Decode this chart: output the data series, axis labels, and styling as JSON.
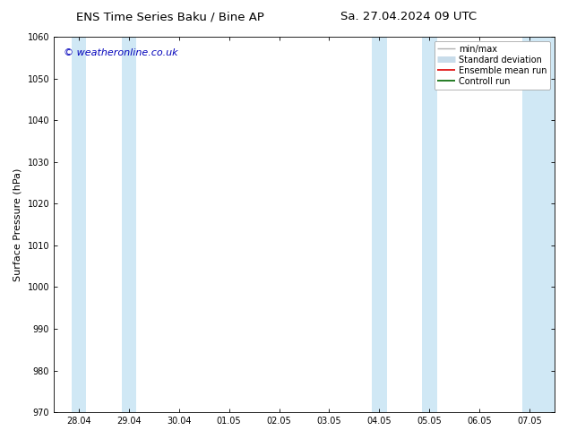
{
  "title_left": "ENS Time Series Baku / Bine AP",
  "title_right": "Sa. 27.04.2024 09 UTC",
  "ylabel": "Surface Pressure (hPa)",
  "ylim": [
    970,
    1060
  ],
  "yticks": [
    970,
    980,
    990,
    1000,
    1010,
    1020,
    1030,
    1040,
    1050,
    1060
  ],
  "xtick_labels": [
    "28.04",
    "29.04",
    "30.04",
    "01.05",
    "02.05",
    "03.05",
    "04.05",
    "05.05",
    "06.05",
    "07.05"
  ],
  "xtick_positions": [
    0,
    1,
    2,
    3,
    4,
    5,
    6,
    7,
    8,
    9
  ],
  "xlim": [
    -0.5,
    9.5
  ],
  "shaded_bands": [
    {
      "x_start": -0.15,
      "x_end": 0.15,
      "color": "#d0e8f5"
    },
    {
      "x_start": 0.85,
      "x_end": 1.15,
      "color": "#d0e8f5"
    },
    {
      "x_start": 5.85,
      "x_end": 6.15,
      "color": "#d0e8f5"
    },
    {
      "x_start": 6.85,
      "x_end": 7.15,
      "color": "#d0e8f5"
    },
    {
      "x_start": 8.85,
      "x_end": 9.5,
      "color": "#d0e8f5"
    }
  ],
  "watermark": "© weatheronline.co.uk",
  "watermark_color": "#0000bb",
  "legend_entries": [
    {
      "label": "min/max",
      "color": "#b0b0b0",
      "lw": 1.0
    },
    {
      "label": "Standard deviation",
      "color": "#c8dcea",
      "lw": 5.0
    },
    {
      "label": "Ensemble mean run",
      "color": "#dd0000",
      "lw": 1.2
    },
    {
      "label": "Controll run",
      "color": "#006600",
      "lw": 1.2
    }
  ],
  "bg_color": "#ffffff",
  "plot_bg_color": "#ffffff",
  "border_color": "#000000",
  "tick_color": "#000000",
  "title_fontsize": 9.5,
  "label_fontsize": 8,
  "tick_fontsize": 7,
  "watermark_fontsize": 8,
  "legend_fontsize": 7
}
